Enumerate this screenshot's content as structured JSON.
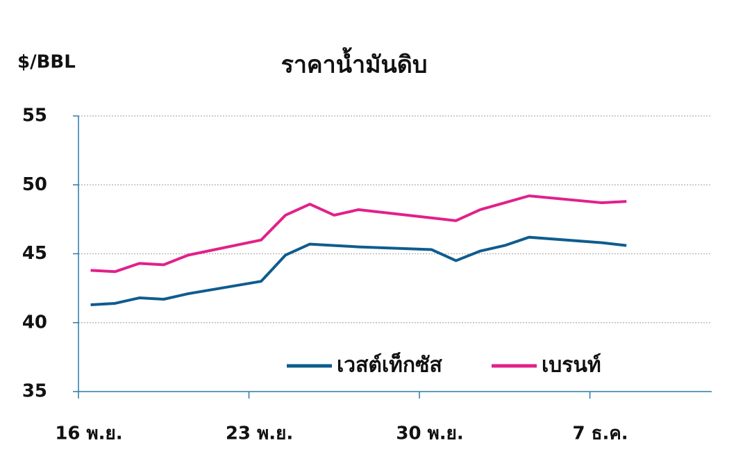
{
  "chart_data": {
    "type": "line",
    "title": "ราคาน้ำมันดิบ",
    "y_label": "$/BBL",
    "x": [
      0,
      1,
      2,
      3,
      4,
      7,
      8,
      9,
      10,
      11,
      14,
      15,
      16,
      17,
      18,
      21,
      22
    ],
    "xlim": [
      -0.5,
      25.5
    ],
    "xticks": [
      {
        "value": -0.5,
        "label": "16 พ.ย."
      },
      {
        "value": 6.5,
        "label": "23 พ.ย."
      },
      {
        "value": 13.5,
        "label": "30 พ.ย."
      },
      {
        "value": 20.5,
        "label": "7 ธ.ค."
      }
    ],
    "ylim": [
      35,
      55
    ],
    "yticks": [
      35,
      40,
      45,
      50,
      55
    ],
    "grid": true,
    "series": [
      {
        "name": "เวสต์เท็กซัส",
        "color": "#0f5c8e",
        "values": [
          41.3,
          41.4,
          41.8,
          41.7,
          42.1,
          43.0,
          44.9,
          45.7,
          45.6,
          45.5,
          45.3,
          44.5,
          45.2,
          45.6,
          46.2,
          45.8,
          45.6
        ]
      },
      {
        "name": "เบรนท์",
        "color": "#e0218a",
        "values": [
          43.8,
          43.7,
          44.3,
          44.2,
          44.9,
          46.0,
          47.8,
          48.6,
          47.8,
          48.2,
          47.6,
          47.4,
          48.2,
          48.7,
          49.2,
          48.7,
          48.8
        ]
      }
    ]
  }
}
